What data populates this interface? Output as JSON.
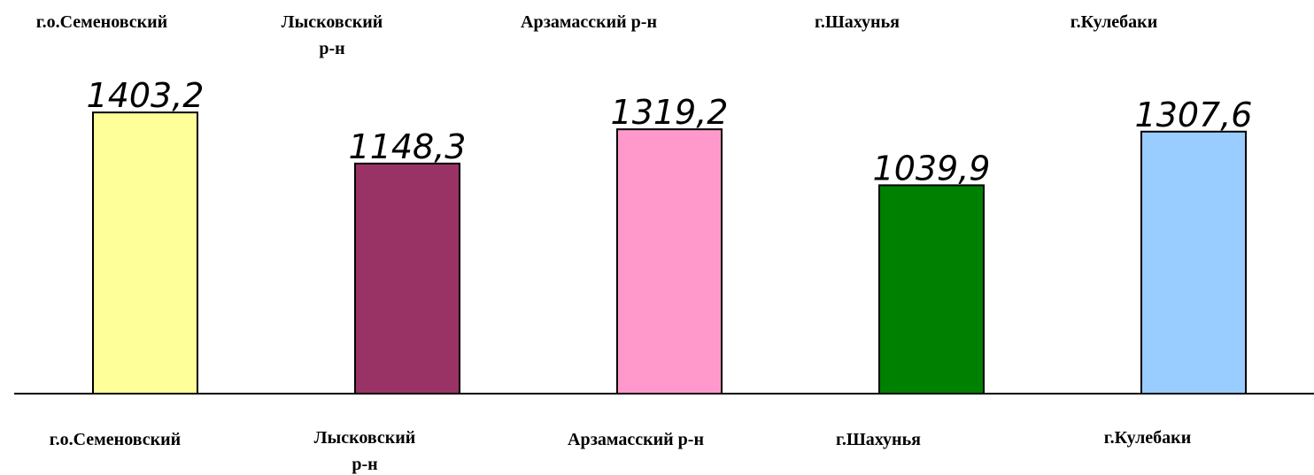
{
  "chart_data": {
    "type": "bar",
    "categories": [
      "г.о.Семеновский",
      "Лысковский р-н",
      "Арзамасский р-н",
      "г.Шахунья",
      "г.Кулебаки"
    ],
    "values": [
      1403.2,
      1148.3,
      1319.2,
      1039.9,
      1307.6
    ],
    "value_labels": [
      "1403,2",
      "1148,3",
      "1319,2",
      "1039,9",
      "1307,6"
    ],
    "colors": [
      "#ffff99",
      "#993366",
      "#ff99cc",
      "#008000",
      "#99ccff"
    ],
    "ylim": [
      0,
      1960
    ]
  }
}
